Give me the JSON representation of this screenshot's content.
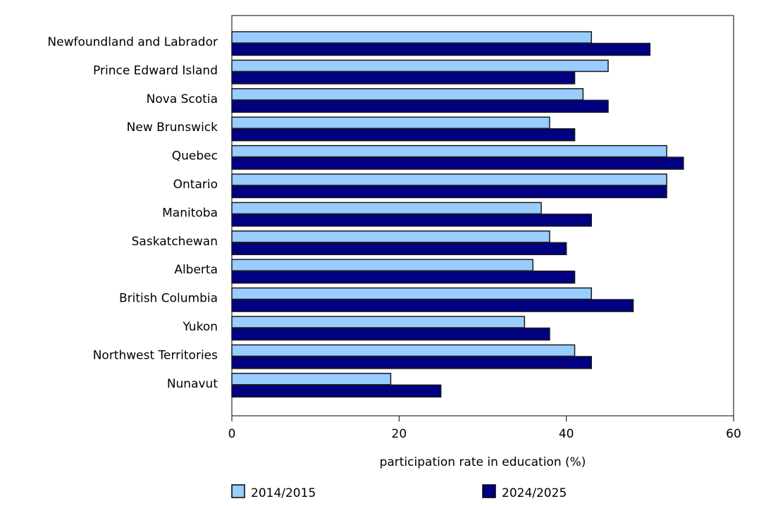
{
  "chart_data": {
    "type": "bar",
    "orientation": "horizontal",
    "categories": [
      "Newfoundland and Labrador",
      "Prince Edward Island",
      "Nova Scotia",
      "New Brunswick",
      "Quebec",
      "Ontario",
      "Manitoba",
      "Saskatchewan",
      "Alberta",
      "British Columbia",
      "Yukon",
      "Northwest Territories",
      "Nunavut"
    ],
    "series": [
      {
        "name": "2014/2015",
        "color": "#99ccff",
        "values": [
          43,
          45,
          42,
          38,
          52,
          52,
          37,
          38,
          36,
          43,
          35,
          41,
          19
        ]
      },
      {
        "name": "2024/2025",
        "color": "#000080",
        "values": [
          50,
          41,
          45,
          41,
          54,
          52,
          43,
          40,
          41,
          48,
          38,
          43,
          25
        ]
      }
    ],
    "title": "",
    "xlabel": "participation rate in education (%)",
    "ylabel": "",
    "xlim": [
      0,
      60
    ],
    "xticks": [
      "0",
      "20",
      "40",
      "60"
    ],
    "grid": false,
    "legend": "bottom"
  }
}
